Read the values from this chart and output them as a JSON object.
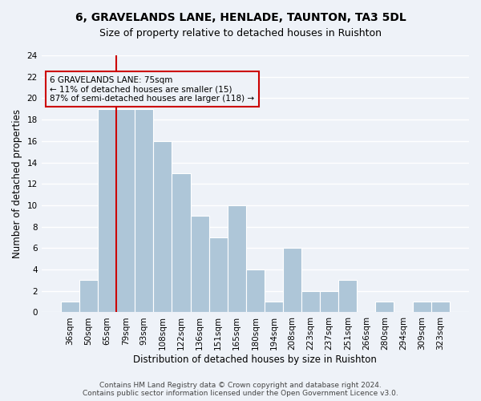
{
  "title1": "6, GRAVELANDS LANE, HENLADE, TAUNTON, TA3 5DL",
  "title2": "Size of property relative to detached houses in Ruishton",
  "xlabel": "Distribution of detached houses by size in Ruishton",
  "ylabel": "Number of detached properties",
  "categories": [
    "36sqm",
    "50sqm",
    "65sqm",
    "79sqm",
    "93sqm",
    "108sqm",
    "122sqm",
    "136sqm",
    "151sqm",
    "165sqm",
    "180sqm",
    "194sqm",
    "208sqm",
    "223sqm",
    "237sqm",
    "251sqm",
    "266sqm",
    "280sqm",
    "294sqm",
    "309sqm",
    "323sqm"
  ],
  "values": [
    1,
    3,
    19,
    19,
    19,
    16,
    13,
    9,
    7,
    10,
    4,
    1,
    6,
    2,
    2,
    3,
    0,
    1,
    0,
    1,
    1
  ],
  "bar_color": "#aec6d8",
  "bar_edgecolor": "#ffffff",
  "vline_color": "#cc0000",
  "vline_x_index": 2.5,
  "annotation_text_line1": "6 GRAVELANDS LANE: 75sqm",
  "annotation_text_line2": "← 11% of detached houses are smaller (15)",
  "annotation_text_line3": "87% of semi-detached houses are larger (118) →",
  "box_edgecolor": "#cc0000",
  "ylim": [
    0,
    24
  ],
  "yticks": [
    0,
    2,
    4,
    6,
    8,
    10,
    12,
    14,
    16,
    18,
    20,
    22,
    24
  ],
  "title1_fontsize": 10,
  "title2_fontsize": 9,
  "xlabel_fontsize": 8.5,
  "ylabel_fontsize": 8.5,
  "tick_fontsize": 7.5,
  "annotation_fontsize": 7.5,
  "footer_text": "Contains HM Land Registry data © Crown copyright and database right 2024.\nContains public sector information licensed under the Open Government Licence v3.0.",
  "footer_fontsize": 6.5,
  "background_color": "#eef2f8",
  "grid_color": "#ffffff"
}
